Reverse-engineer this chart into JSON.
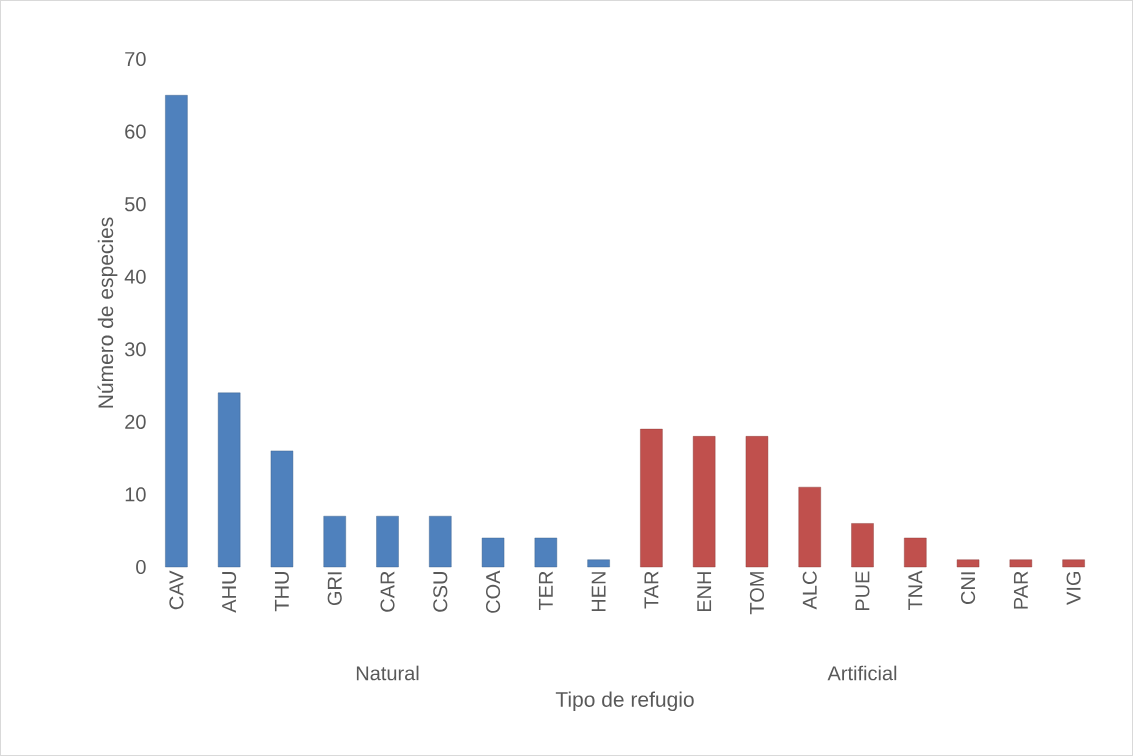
{
  "chart_data": {
    "type": "bar",
    "xlabel": "Tipo de refugio",
    "ylabel": "Número de especies",
    "categories": [
      "CAV",
      "AHU",
      "THU",
      "GRI",
      "CAR",
      "CSU",
      "COA",
      "TER",
      "HEN",
      "TAR",
      "ENH",
      "TOM",
      "ALC",
      "PUE",
      "TNA",
      "CNI",
      "PAR",
      "VIG"
    ],
    "series": [
      {
        "color": "#4f81bd",
        "values": [
          65,
          24,
          16,
          7,
          7,
          7,
          4,
          4,
          1,
          null,
          null,
          null,
          null,
          null,
          null,
          null,
          null,
          null
        ]
      },
      {
        "color": "#c0504d",
        "values": [
          null,
          null,
          null,
          null,
          null,
          null,
          null,
          null,
          null,
          19,
          18,
          18,
          11,
          6,
          4,
          1,
          1,
          1
        ]
      }
    ],
    "annotations": [
      "Natural",
      "Artificial"
    ],
    "ylim": [
      0,
      70
    ],
    "yticks": [
      0,
      10,
      20,
      30,
      40,
      50,
      60,
      70
    ]
  }
}
